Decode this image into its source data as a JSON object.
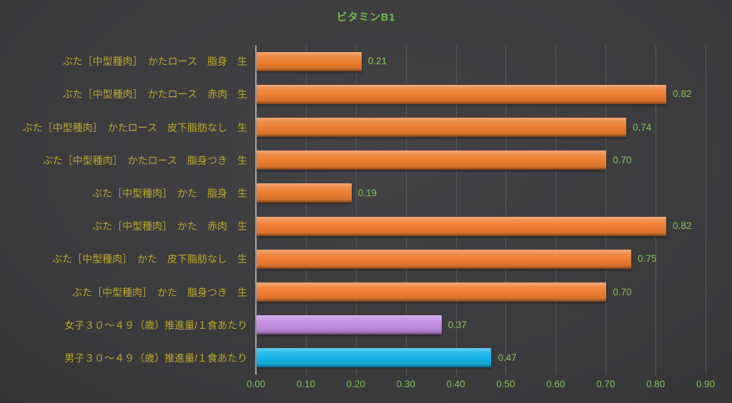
{
  "chart_data": {
    "type": "bar",
    "orientation": "horizontal",
    "title": "ビタミンB1",
    "xlabel": "",
    "ylabel": "",
    "xlim": [
      0,
      0.9
    ],
    "grid": "vertical-only",
    "legend": "none",
    "x_ticks": [
      "0.00",
      "0.10",
      "0.20",
      "0.30",
      "0.40",
      "0.50",
      "0.60",
      "0.70",
      "0.80",
      "0.90"
    ],
    "bars": [
      {
        "category": "ぶた［中型種肉］　かたロース　脂身　生",
        "value": 0.21,
        "label": "0.21",
        "color": "#ED7D31"
      },
      {
        "category": "ぶた［中型種肉］　かたロース　赤肉　生",
        "value": 0.82,
        "label": "0.82",
        "color": "#ED7D31"
      },
      {
        "category": "ぶた［中型種肉］　かたロース　皮下脂肪なし　生",
        "value": 0.74,
        "label": "0.74",
        "color": "#ED7D31"
      },
      {
        "category": "ぶた［中型種肉］　かたロース　脂身つき　生",
        "value": 0.7,
        "label": "0.70",
        "color": "#ED7D31"
      },
      {
        "category": "ぶた［中型種肉］　かた　脂身　生",
        "value": 0.19,
        "label": "0.19",
        "color": "#ED7D31"
      },
      {
        "category": "ぶた［中型種肉］　かた　赤肉　生",
        "value": 0.82,
        "label": "0.82",
        "color": "#ED7D31"
      },
      {
        "category": "ぶた［中型種肉］　かた　皮下脂肪なし　生",
        "value": 0.75,
        "label": "0.75",
        "color": "#ED7D31"
      },
      {
        "category": "ぶた［中型種肉］　かた　脂身つき　生",
        "value": 0.7,
        "label": "0.70",
        "color": "#ED7D31"
      },
      {
        "category": "女子３０～４９（歳）推進量/１食あたり",
        "value": 0.37,
        "label": "0.37",
        "color": "#C18DE2"
      },
      {
        "category": "男子３０～４９（歳）推進量/１食あたり",
        "value": 0.47,
        "label": "0.47",
        "color": "#14B4E9"
      }
    ],
    "colors": {
      "title": "#6FBF4B",
      "category_label": "#BCA928",
      "value_label": "#86C558",
      "tick_label": "#7FC352",
      "gridline": "#58585B",
      "axis_line": "#A8A8AB"
    }
  }
}
